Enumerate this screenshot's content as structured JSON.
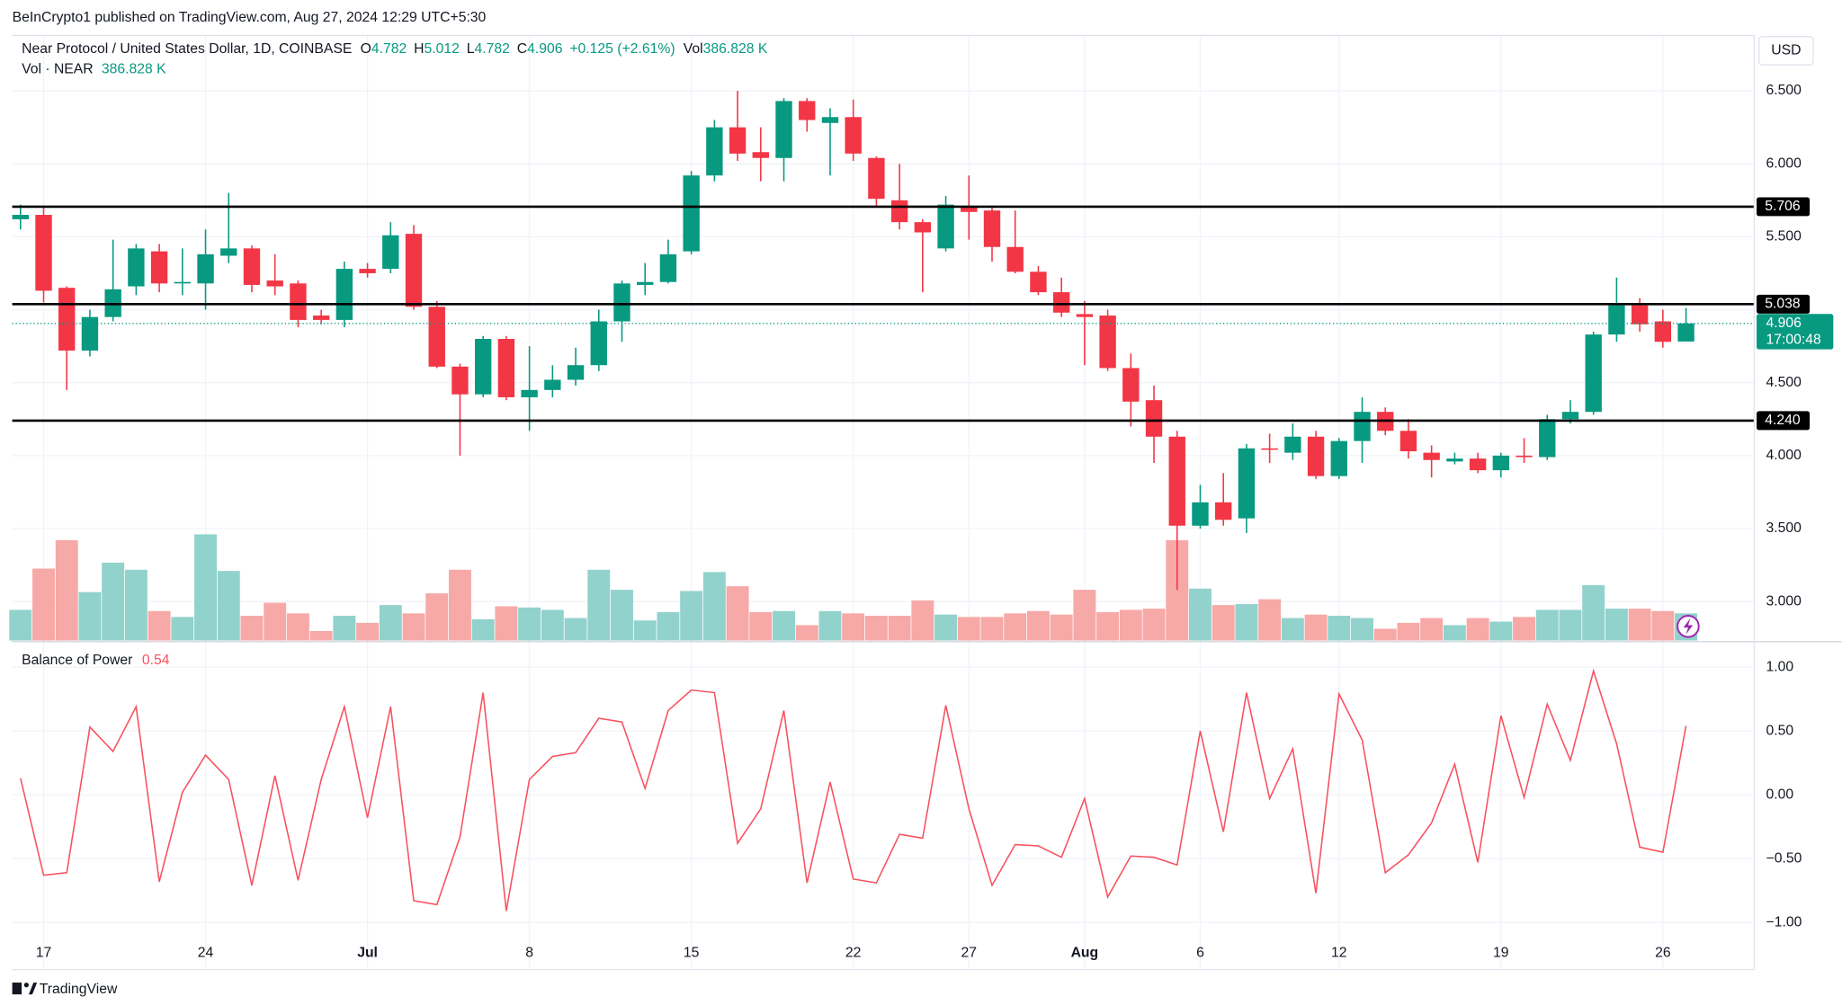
{
  "publisher": "BeInCrypto1 published on TradingView.com, Aug 27, 2024 12:29 UTC+5:30",
  "footer": "TradingView",
  "chart_data": [
    {
      "type": "candlestick",
      "title": "Near Protocol / United States Dollar, 1D, COINBASE",
      "currency": "USD",
      "ohlc_labels": [
        "O",
        "H",
        "L",
        "C"
      ],
      "change_label": "+0.125 (+2.61%)",
      "volume_prefix": "Vol",
      "volume_title": "Vol · NEAR",
      "volume_last_label": "386.828 K",
      "countdown": "17:00:48",
      "open": [
        5.62,
        5.65,
        5.15,
        4.72,
        4.95,
        5.16,
        5.4,
        5.18,
        5.18,
        5.37,
        5.42,
        5.2,
        5.18,
        4.96,
        4.93,
        5.28,
        5.28,
        5.52,
        5.02,
        4.61,
        4.42,
        4.8,
        4.4,
        4.45,
        4.52,
        4.62,
        4.92,
        5.17,
        5.19,
        5.4,
        5.92,
        6.25,
        6.08,
        6.04,
        6.43,
        6.28,
        6.32,
        6.04,
        5.75,
        5.6,
        5.42,
        5.71,
        5.68,
        5.43,
        5.26,
        5.12,
        4.97,
        4.96,
        4.6,
        4.38,
        4.13,
        3.52,
        3.68,
        3.57,
        4.05,
        4.02,
        4.13,
        3.86,
        4.1,
        4.3,
        4.17,
        4.02,
        3.96,
        3.98,
        3.9,
        4.0,
        3.99,
        4.25,
        4.3,
        4.83,
        5.03,
        4.92,
        4.782
      ],
      "high": [
        5.72,
        5.7,
        5.16,
        5.0,
        5.48,
        5.45,
        5.45,
        5.42,
        5.55,
        5.8,
        5.44,
        5.38,
        5.2,
        5.0,
        5.33,
        5.32,
        5.6,
        5.58,
        5.06,
        4.63,
        4.82,
        4.82,
        4.75,
        4.62,
        4.74,
        5.0,
        5.2,
        5.32,
        5.48,
        5.95,
        6.3,
        6.5,
        6.25,
        6.45,
        6.45,
        6.38,
        6.44,
        6.05,
        6.0,
        5.62,
        5.78,
        5.92,
        5.7,
        5.68,
        5.3,
        5.22,
        5.06,
        5.0,
        4.7,
        4.48,
        4.17,
        3.8,
        3.88,
        4.08,
        4.15,
        4.22,
        4.17,
        4.12,
        4.4,
        4.33,
        4.25,
        4.07,
        4.02,
        4.02,
        4.02,
        4.12,
        4.28,
        4.38,
        4.85,
        5.22,
        5.08,
        5.0,
        5.012
      ],
      "low": [
        5.55,
        5.05,
        4.45,
        4.68,
        4.92,
        5.1,
        5.12,
        5.1,
        5.0,
        5.32,
        5.12,
        5.1,
        4.88,
        4.9,
        4.88,
        5.22,
        5.25,
        5.0,
        4.6,
        4.0,
        4.4,
        4.38,
        4.17,
        4.4,
        4.48,
        4.58,
        4.78,
        5.1,
        5.18,
        5.38,
        5.88,
        6.02,
        5.88,
        5.88,
        6.22,
        5.92,
        6.02,
        5.7,
        5.55,
        5.12,
        5.4,
        5.48,
        5.33,
        5.25,
        5.1,
        4.95,
        4.62,
        4.58,
        4.2,
        3.95,
        3.08,
        3.5,
        3.52,
        3.47,
        3.95,
        3.97,
        3.84,
        3.84,
        3.95,
        4.14,
        3.98,
        3.85,
        3.94,
        3.88,
        3.85,
        3.95,
        3.97,
        4.22,
        4.28,
        4.78,
        4.85,
        4.74,
        4.782
      ],
      "close": [
        5.65,
        5.13,
        4.72,
        4.95,
        5.14,
        5.42,
        5.18,
        5.19,
        5.38,
        5.42,
        5.17,
        5.16,
        4.93,
        4.93,
        5.28,
        5.25,
        5.51,
        5.02,
        4.61,
        4.42,
        4.8,
        4.4,
        4.45,
        4.52,
        4.62,
        4.92,
        5.18,
        5.19,
        5.38,
        5.92,
        6.25,
        6.07,
        6.04,
        6.43,
        6.3,
        6.32,
        6.07,
        5.76,
        5.6,
        5.53,
        5.72,
        5.67,
        5.43,
        5.26,
        5.12,
        4.98,
        4.95,
        4.6,
        4.37,
        4.13,
        3.52,
        3.68,
        3.56,
        4.05,
        4.04,
        4.13,
        3.86,
        4.1,
        4.3,
        4.17,
        4.03,
        3.97,
        3.98,
        3.9,
        4.0,
        3.99,
        4.25,
        4.3,
        4.83,
        5.03,
        4.9,
        4.78,
        4.906
      ],
      "volume": [
        437,
        1026,
        1430,
        690,
        1110,
        1009,
        420,
        336,
        1514,
        992,
        353,
        538,
        387,
        135,
        353,
        252,
        505,
        387,
        673,
        1009,
        303,
        488,
        471,
        437,
        320,
        1009,
        723,
        286,
        404,
        706,
        976,
        774,
        404,
        420,
        219,
        420,
        387,
        353,
        353,
        572,
        370,
        336,
        336,
        387,
        420,
        370,
        723,
        404,
        437,
        454,
        1430,
        740,
        505,
        521,
        589,
        320,
        370,
        353,
        320,
        168,
        252,
        320,
        219,
        320,
        269,
        336,
        437,
        437,
        790,
        454,
        454,
        420,
        386.828
      ],
      "up_color": "#089981",
      "down_color": "#f23645",
      "volume_up_color": "#92d2cc",
      "volume_down_color": "#f7a9a7",
      "ylim": [
        2.733,
        6.88
      ],
      "yticks": [
        {
          "value": 3,
          "label": "3.000"
        },
        {
          "value": 3.5,
          "label": "3.500"
        },
        {
          "value": 4,
          "label": "4.000"
        },
        {
          "value": 4.5,
          "label": "4.500"
        },
        {
          "value": 5,
          "label": "5.000"
        },
        {
          "value": 5.5,
          "label": "5.500"
        },
        {
          "value": 6,
          "label": "6.000"
        },
        {
          "value": 6.5,
          "label": "6.500"
        }
      ],
      "xticks": [
        {
          "value": 1,
          "label": "17"
        },
        {
          "value": 8,
          "label": "24"
        },
        {
          "value": 15,
          "label": "Jul"
        },
        {
          "value": 22,
          "label": "8"
        },
        {
          "value": 29,
          "label": "15"
        },
        {
          "value": 36,
          "label": "22"
        },
        {
          "value": 41,
          "label": "27"
        },
        {
          "value": 46,
          "label": "Aug"
        },
        {
          "value": 51,
          "label": "6"
        },
        {
          "value": 57,
          "label": "12"
        },
        {
          "value": 64,
          "label": "19"
        },
        {
          "value": 71,
          "label": "26"
        }
      ],
      "levels": [
        5.706,
        5.038,
        {
          "value": 4.24,
          "label": "4.240"
        }
      ],
      "grid": true
    },
    {
      "type": "line",
      "title": "Balance of Power",
      "color": "#f7525f",
      "values": [
        0.13,
        -0.63,
        -0.61,
        0.53,
        0.34,
        0.69,
        -0.68,
        0.02,
        0.31,
        0.12,
        -0.71,
        0.15,
        -0.67,
        0.12,
        0.69,
        -0.18,
        0.69,
        -0.83,
        -0.86,
        -0.33,
        0.8,
        -0.91,
        0.12,
        0.3,
        0.33,
        0.6,
        0.57,
        0.05,
        0.66,
        0.82,
        0.8,
        -0.38,
        -0.11,
        0.66,
        -0.69,
        0.1,
        -0.66,
        -0.69,
        -0.31,
        -0.34,
        0.7,
        -0.11,
        -0.71,
        -0.39,
        -0.4,
        -0.49,
        -0.03,
        -0.8,
        -0.48,
        -0.49,
        -0.55,
        0.5,
        -0.29,
        0.8,
        -0.03,
        0.36,
        -0.77,
        0.79,
        0.43,
        -0.61,
        -0.47,
        -0.22,
        0.24,
        -0.53,
        0.62,
        -0.02,
        0.71,
        0.27,
        0.97,
        0.4,
        -0.41,
        -0.45,
        0.54
      ],
      "ylim": [
        -1.12,
        1.19
      ],
      "yticks": [
        {
          "value": -1,
          "label": "−1.00"
        },
        {
          "value": -0.5,
          "label": "−0.50"
        },
        {
          "value": 0,
          "label": "0.00"
        },
        {
          "value": 0.5,
          "label": "0.50"
        },
        {
          "value": 1,
          "label": "1.00"
        }
      ],
      "grid": true
    }
  ]
}
